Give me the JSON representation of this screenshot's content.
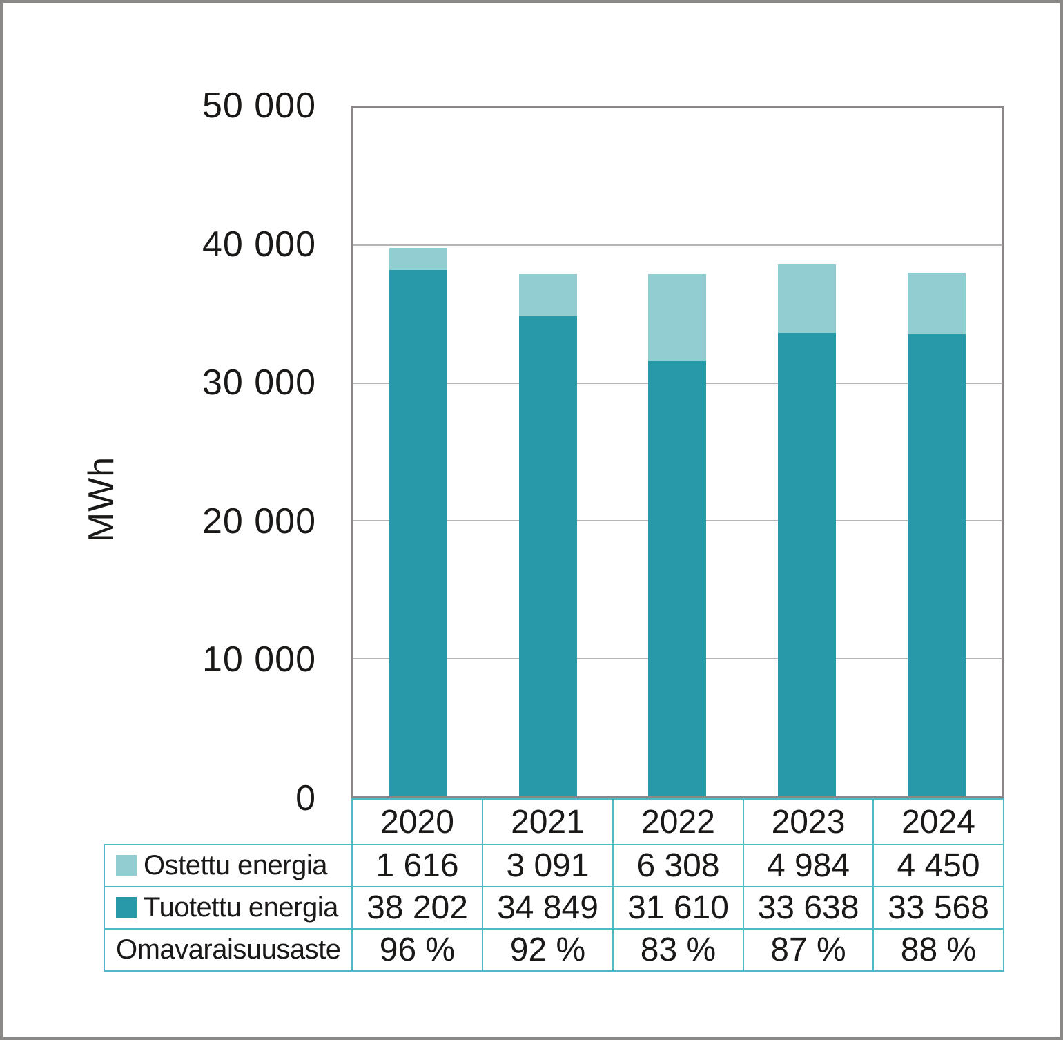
{
  "colors": {
    "purchased": "#92cdd2",
    "produced": "#2799a8",
    "table_border": "#4fb9c5",
    "plot_border": "#8a8786",
    "gridline": "#b7b4b4",
    "frame": "#8b8888",
    "text": "#1b1918"
  },
  "chart_data": {
    "type": "bar",
    "stacked": true,
    "categories": [
      "2020",
      "2021",
      "2022",
      "2023",
      "2024"
    ],
    "series": [
      {
        "name": "Ostettu energia",
        "color_key": "purchased",
        "values": [
          1616,
          3091,
          6308,
          4984,
          4450
        ]
      },
      {
        "name": "Tuotettu energia",
        "color_key": "produced",
        "values": [
          38202,
          34849,
          31610,
          33638,
          33568
        ]
      }
    ],
    "annotation_rows": [
      {
        "name": "Omavaraisuusaste",
        "values": [
          "96 %",
          "92 %",
          "83 %",
          "87 %",
          "88 %"
        ]
      }
    ],
    "title": "",
    "xlabel": "",
    "ylabel": "MWh",
    "ylim": [
      0,
      50000
    ],
    "yticks": [
      0,
      10000,
      20000,
      30000,
      40000,
      50000
    ],
    "ytick_labels": [
      "0",
      "10 000",
      "20 000",
      "30 000",
      "40 000",
      "50 000"
    ],
    "grid": true,
    "legend_position": "table-rows-left"
  },
  "table": {
    "header_row": [
      "2020",
      "2021",
      "2022",
      "2023",
      "2024"
    ],
    "rows": [
      {
        "label": "Ostettu energia",
        "swatch": "purchased",
        "cells": [
          "1 616",
          "3 091",
          "6 308",
          "4 984",
          "4 450"
        ]
      },
      {
        "label": "Tuotettu energia",
        "swatch": "produced",
        "cells": [
          "38 202",
          "34 849",
          "31 610",
          "33 638",
          "33 568"
        ]
      },
      {
        "label": "Omavaraisuusaste",
        "swatch": null,
        "cells": [
          "96 %",
          "92 %",
          "83 %",
          "87 %",
          "88 %"
        ]
      }
    ]
  }
}
